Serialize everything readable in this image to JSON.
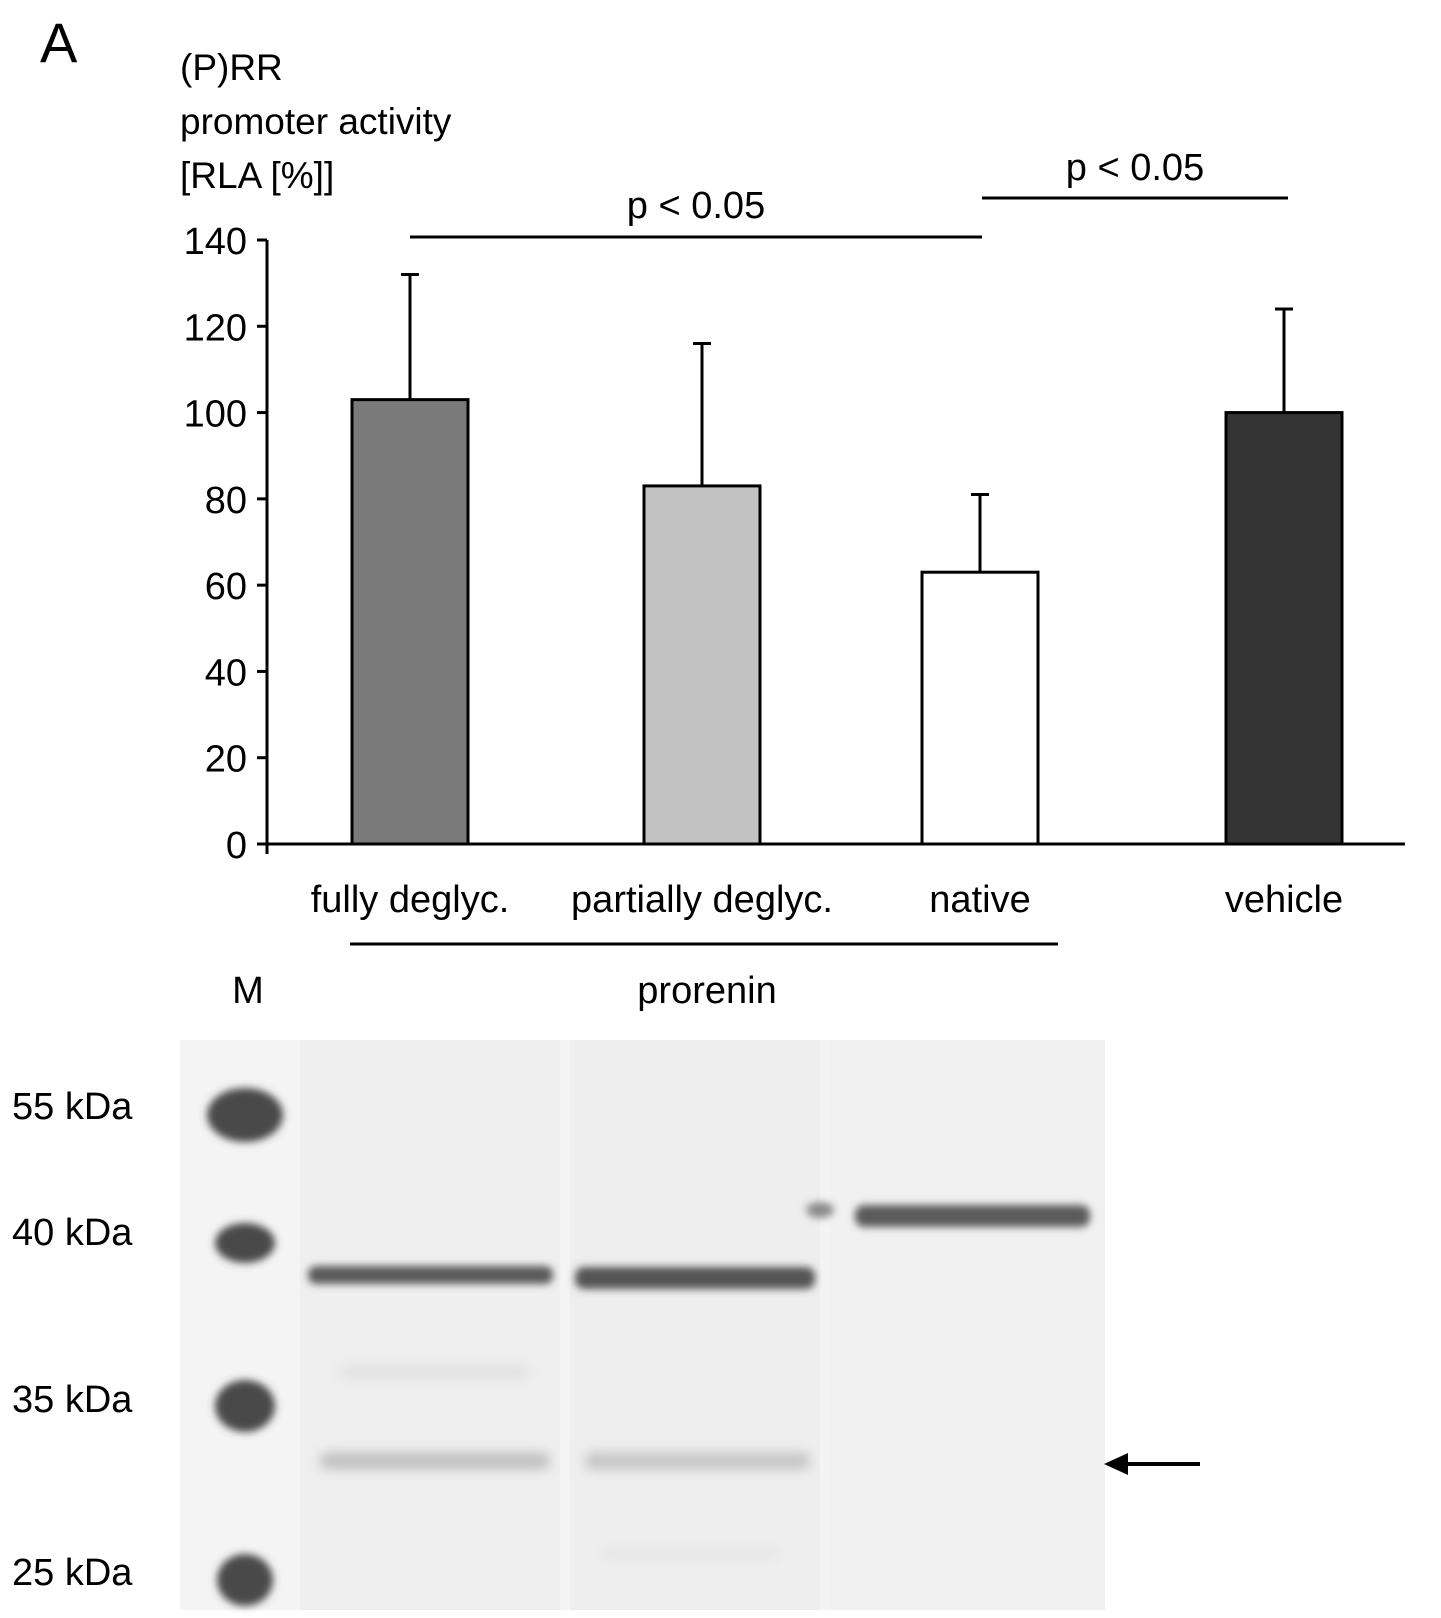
{
  "panel_label": "A",
  "colors": {
    "fully_deglyc": "#7a7a7a",
    "partially_deglyc": "#c2c2c2",
    "native": "#ffffff",
    "vehicle": "#333333",
    "axis": "#000000",
    "marker_band": "#4a4a4a",
    "sample_band": "#5a5a5a",
    "faint_band": "#bdbdbd"
  },
  "chart_data": {
    "type": "bar",
    "ylabel_lines": [
      "(P)RR",
      "promoter activity",
      "[RLA [%]]"
    ],
    "ylim": [
      0,
      140
    ],
    "yticks": [
      "0",
      "20",
      "40",
      "60",
      "80",
      "100",
      "120",
      "140"
    ],
    "categories": [
      "fully deglyc.",
      "partially deglyc.",
      "native",
      "vehicle"
    ],
    "values": [
      103,
      83,
      63,
      100
    ],
    "errors": [
      29,
      33,
      18,
      24
    ],
    "group_label": "prorenin",
    "significance": [
      {
        "from": 0,
        "to": 2,
        "label": "p < 0.05"
      },
      {
        "from": 2,
        "to": 3,
        "label": "p < 0.05"
      }
    ]
  },
  "gel": {
    "marker_lane_label": "M",
    "marker_sizes": [
      "55 kDa",
      "40 kDa",
      "35 kDa",
      "25 kDa"
    ],
    "arrow_icon": "left-arrow-icon"
  }
}
